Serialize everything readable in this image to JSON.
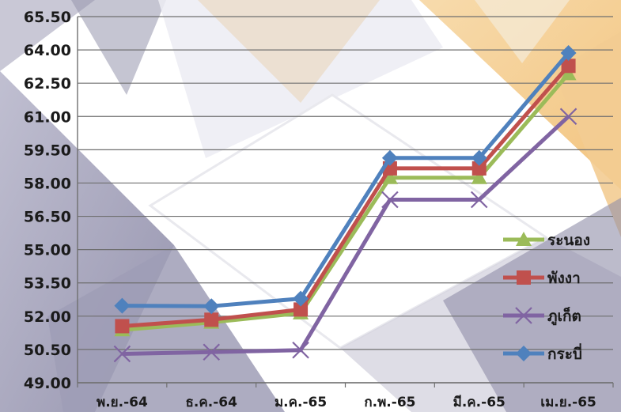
{
  "chart_data": {
    "type": "line",
    "title": "",
    "xlabel": "",
    "ylabel": "",
    "categories": [
      "พ.ย.-64",
      "ธ.ค.-64",
      "ม.ค.-65",
      "ก.พ.-65",
      "มี.ค.-65",
      "เม.ย.-65"
    ],
    "ylim": [
      49.0,
      65.5
    ],
    "yticks": [
      "49.00",
      "50.50",
      "52.00",
      "53.50",
      "55.00",
      "56.50",
      "58.00",
      "59.50",
      "61.00",
      "62.50",
      "64.00",
      "65.50"
    ],
    "grid": true,
    "legend_position": "right",
    "series": [
      {
        "name": "ระนอง",
        "values": [
          51.38,
          51.72,
          52.14,
          58.24,
          58.24,
          62.92
        ],
        "color": "#9bbb59",
        "marker": "triangle"
      },
      {
        "name": "พังงา",
        "values": [
          51.55,
          51.84,
          52.3,
          58.66,
          58.66,
          63.28
        ],
        "color": "#c0504d",
        "marker": "square"
      },
      {
        "name": "ภูเก็ต",
        "values": [
          50.3,
          50.38,
          50.47,
          57.25,
          57.25,
          61.0
        ],
        "color": "#8064a2",
        "marker": "x"
      },
      {
        "name": "กระบี่",
        "values": [
          52.47,
          52.45,
          52.79,
          59.13,
          59.13,
          63.86
        ],
        "color": "#4f81bd",
        "marker": "diamond"
      }
    ]
  }
}
